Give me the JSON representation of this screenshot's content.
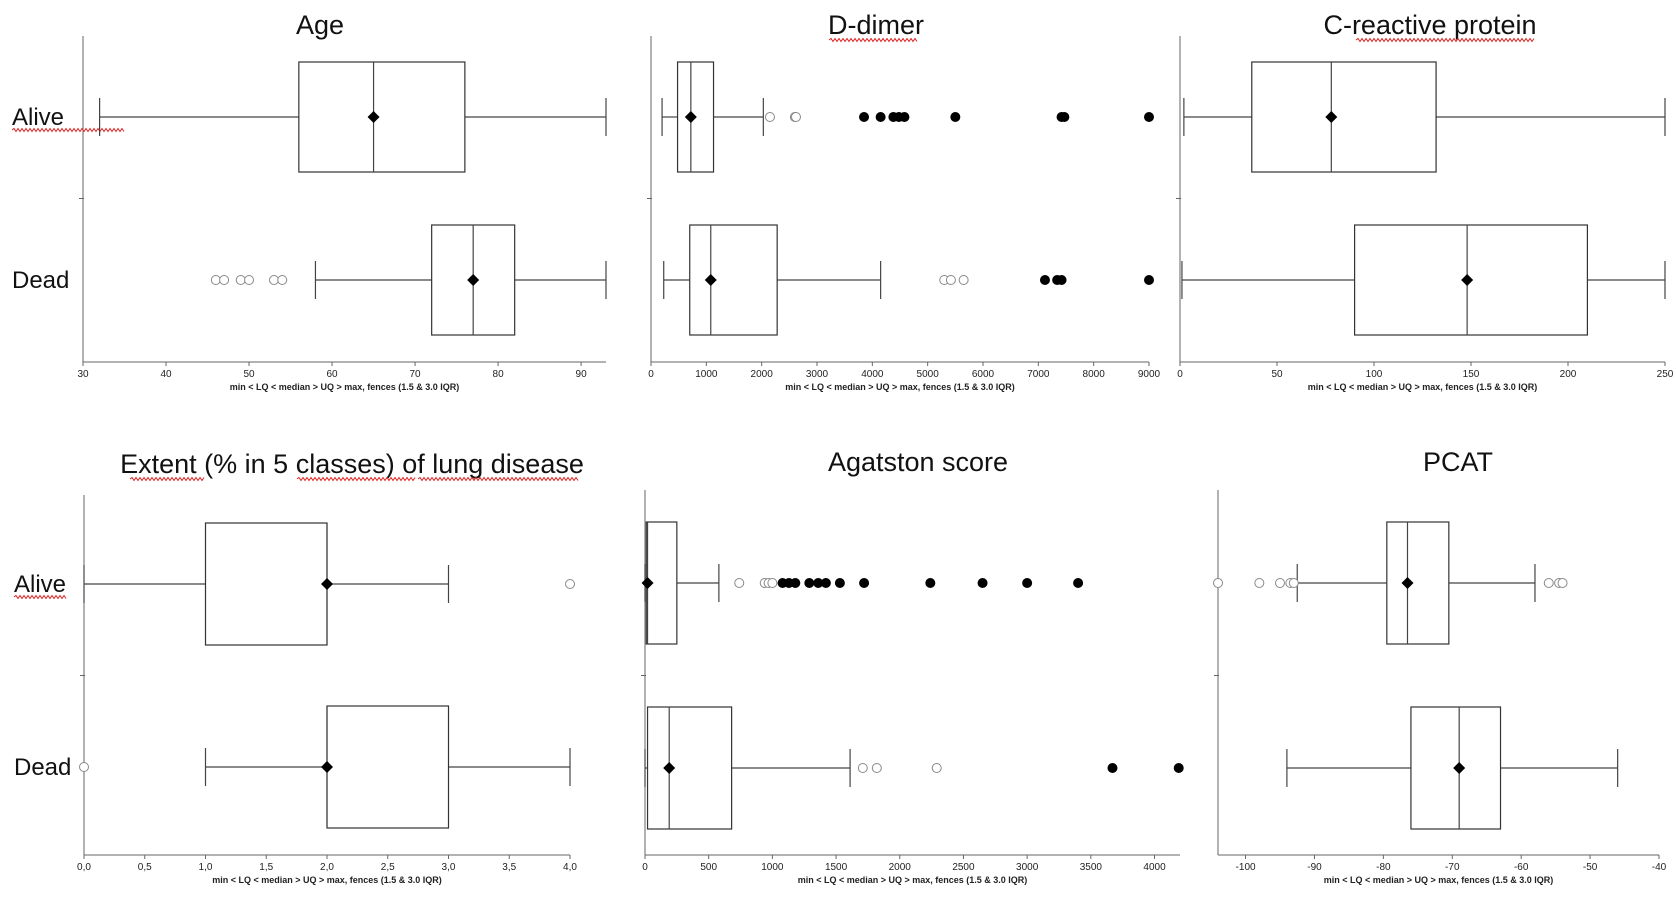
{
  "panels": [
    {
      "title": "Age",
      "xlabel": "min < LQ < median > UQ > max, fences (1.5 & 3.0 IQR)",
      "xmin": 30,
      "xmax": 93,
      "ticks": [
        30,
        40,
        50,
        60,
        70,
        80,
        90
      ],
      "tick_labels": [
        "30",
        "40",
        "50",
        "60",
        "70",
        "80",
        "90"
      ],
      "groups": [
        {
          "label": "Alive",
          "min": 32,
          "q1": 56,
          "median": 65,
          "q3": 76,
          "max": 93,
          "mean": 65,
          "outliers_mild": [],
          "outliers_extreme": []
        },
        {
          "label": "Dead",
          "min": 58,
          "q1": 72,
          "median": 77,
          "q3": 82,
          "max": 93,
          "mean": 77,
          "outliers_mild": [
            46,
            47,
            49,
            50,
            53,
            54
          ],
          "outliers_extreme": []
        }
      ]
    },
    {
      "title": "D-dimer",
      "xlabel": "min < LQ < median > UQ > max, fences (1.5 & 3.0 IQR)",
      "xmin": 0,
      "xmax": 9000,
      "ticks": [
        0,
        1000,
        2000,
        3000,
        4000,
        5000,
        6000,
        7000,
        8000,
        9000
      ],
      "tick_labels": [
        "0",
        "1000",
        "2000",
        "3000",
        "4000",
        "5000",
        "6000",
        "7000",
        "8000",
        "9000"
      ],
      "groups": [
        {
          "label": "Alive",
          "min": 200,
          "q1": 480,
          "median": 720,
          "q3": 1130,
          "max": 2030,
          "mean": 720,
          "outliers_mild": [
            2150,
            2600,
            2620
          ],
          "outliers_extreme": [
            3850,
            4150,
            4380,
            4480,
            4580,
            5500,
            7420,
            7470,
            9000
          ]
        },
        {
          "label": "Dead",
          "min": 230,
          "q1": 700,
          "median": 1080,
          "q3": 2280,
          "max": 4150,
          "mean": 1080,
          "outliers_mild": [
            5300,
            5420,
            5650
          ],
          "outliers_extreme": [
            7120,
            7340,
            7420,
            9000
          ]
        }
      ]
    },
    {
      "title": "C-reactive protein",
      "xlabel": "min < LQ < median > UQ > max, fences (1.5 & 3.0 IQR)",
      "xmin": 0,
      "xmax": 250,
      "ticks": [
        0,
        50,
        100,
        150,
        200,
        250
      ],
      "tick_labels": [
        "0",
        "50",
        "100",
        "150",
        "200",
        "250"
      ],
      "groups": [
        {
          "label": "Alive",
          "min": 2,
          "q1": 37,
          "median": 78,
          "q3": 132,
          "max": 250,
          "mean": 78,
          "outliers_mild": [],
          "outliers_extreme": []
        },
        {
          "label": "Dead",
          "min": 1,
          "q1": 90,
          "median": 148,
          "q3": 210,
          "max": 250,
          "mean": 148,
          "outliers_mild": [],
          "outliers_extreme": []
        }
      ]
    },
    {
      "title": "Extent (% in 5 classes) of lung disease",
      "xlabel": "min < LQ < median > UQ > max, fences (1.5 & 3.0 IQR)",
      "xmin": 0,
      "xmax": 4,
      "ticks": [
        0,
        0.5,
        1,
        1.5,
        2,
        2.5,
        3,
        3.5,
        4
      ],
      "tick_labels": [
        "0,0",
        "0,5",
        "1,0",
        "1,5",
        "2,0",
        "2,5",
        "3,0",
        "3,5",
        "4,0"
      ],
      "groups": [
        {
          "label": "Alive",
          "min": 0,
          "q1": 1,
          "median": 2,
          "q3": 2,
          "max": 3,
          "mean": 2,
          "outliers_mild": [
            4
          ],
          "outliers_extreme": []
        },
        {
          "label": "Dead",
          "min": 1,
          "q1": 2,
          "median": 2,
          "q3": 3,
          "max": 4,
          "mean": 2,
          "outliers_mild": [
            0
          ],
          "outliers_extreme": []
        }
      ]
    },
    {
      "title": "Agatston score",
      "xlabel": "min < LQ < median > UQ > max, fences (1.5 & 3.0 IQR)",
      "xmin": 0,
      "xmax": 4200,
      "ticks": [
        0,
        500,
        1000,
        1500,
        2000,
        2500,
        3000,
        3500,
        4000
      ],
      "tick_labels": [
        "0",
        "500",
        "1000",
        "1500",
        "2000",
        "2500",
        "3000",
        "3500",
        "4000"
      ],
      "groups": [
        {
          "label": "Alive",
          "min": 0,
          "q1": 10,
          "median": 20,
          "q3": 250,
          "max": 580,
          "mean": 20,
          "outliers_mild": [
            740,
            940,
            970,
            1000
          ],
          "outliers_extreme": [
            1080,
            1130,
            1180,
            1290,
            1360,
            1420,
            1530,
            1720,
            2240,
            2650,
            3000,
            3400
          ]
        },
        {
          "label": "Dead",
          "min": 0,
          "q1": 20,
          "median": 190,
          "q3": 680,
          "max": 1610,
          "mean": 190,
          "outliers_mild": [
            1710,
            1820,
            2290
          ],
          "outliers_extreme": [
            3670,
            4190
          ]
        }
      ]
    },
    {
      "title": "PCAT",
      "xlabel": "min < LQ < median > UQ > max, fences (1.5 & 3.0 IQR)",
      "xmin": -104,
      "xmax": -40,
      "ticks": [
        -100,
        -90,
        -80,
        -70,
        -60,
        -50,
        -40
      ],
      "tick_labels": [
        "-100",
        "-90",
        "-80",
        "-70",
        "-60",
        "-50",
        "-40"
      ],
      "groups": [
        {
          "label": "Alive",
          "min": -92.5,
          "q1": -79.5,
          "median": -76.5,
          "q3": -70.5,
          "max": -58,
          "mean": -76.5,
          "outliers_mild": [
            -104,
            -98,
            -95,
            -93.5,
            -93,
            -56,
            -54.5,
            -54
          ],
          "outliers_extreme": []
        },
        {
          "label": "Dead",
          "min": -94,
          "q1": -76,
          "median": -69,
          "q3": -63,
          "max": -46,
          "mean": -69,
          "outliers_mild": [],
          "outliers_extreme": []
        }
      ]
    }
  ],
  "chart_data": [
    {
      "type": "box",
      "title": "Age",
      "xlabel": "min < LQ < median > UQ > max, fences (1.5 & 3.0 IQR)",
      "xlim": [
        30,
        93
      ],
      "categories": [
        "Alive",
        "Dead"
      ],
      "series": [
        {
          "name": "Alive",
          "values": [
            32,
            56,
            65,
            76,
            93
          ]
        },
        {
          "name": "Dead",
          "values": [
            58,
            72,
            77,
            82,
            93
          ],
          "outliers": [
            46,
            47,
            49,
            50,
            53,
            54
          ]
        }
      ]
    },
    {
      "type": "box",
      "title": "D-dimer",
      "xlabel": "min < LQ < median > UQ > max, fences (1.5 & 3.0 IQR)",
      "xlim": [
        0,
        9000
      ],
      "categories": [
        "Alive",
        "Dead"
      ],
      "series": [
        {
          "name": "Alive",
          "values": [
            200,
            480,
            720,
            1130,
            2030
          ],
          "outliers": [
            2150,
            2600,
            2620,
            3850,
            4150,
            4380,
            4480,
            4580,
            5500,
            7420,
            7470,
            9000
          ]
        },
        {
          "name": "Dead",
          "values": [
            230,
            700,
            1080,
            2280,
            4150
          ],
          "outliers": [
            5300,
            5420,
            5650,
            7120,
            7340,
            7420,
            9000
          ]
        }
      ]
    },
    {
      "type": "box",
      "title": "C-reactive protein",
      "xlabel": "min < LQ < median > UQ > max, fences (1.5 & 3.0 IQR)",
      "xlim": [
        0,
        250
      ],
      "categories": [
        "Alive",
        "Dead"
      ],
      "series": [
        {
          "name": "Alive",
          "values": [
            2,
            37,
            78,
            132,
            250
          ]
        },
        {
          "name": "Dead",
          "values": [
            1,
            90,
            148,
            210,
            250
          ]
        }
      ]
    },
    {
      "type": "box",
      "title": "Extent (% in 5 classes) of lung disease",
      "xlabel": "min < LQ < median > UQ > max, fences (1.5 & 3.0 IQR)",
      "xlim": [
        0,
        4
      ],
      "categories": [
        "Alive",
        "Dead"
      ],
      "series": [
        {
          "name": "Alive",
          "values": [
            0,
            1,
            2,
            2,
            3
          ],
          "outliers": [
            4
          ]
        },
        {
          "name": "Dead",
          "values": [
            1,
            2,
            2,
            3,
            4
          ],
          "outliers": [
            0
          ]
        }
      ]
    },
    {
      "type": "box",
      "title": "Agatston score",
      "xlabel": "min < LQ < median > UQ > max, fences (1.5 & 3.0 IQR)",
      "xlim": [
        0,
        4200
      ],
      "categories": [
        "Alive",
        "Dead"
      ],
      "series": [
        {
          "name": "Alive",
          "values": [
            0,
            10,
            20,
            250,
            580
          ],
          "outliers": [
            740,
            940,
            970,
            1000,
            1080,
            1130,
            1180,
            1290,
            1360,
            1420,
            1530,
            1720,
            2240,
            2650,
            3000,
            3400
          ]
        },
        {
          "name": "Dead",
          "values": [
            0,
            20,
            190,
            680,
            1610
          ],
          "outliers": [
            1710,
            1820,
            2290,
            3670,
            4190
          ]
        }
      ]
    },
    {
      "type": "box",
      "title": "PCAT",
      "xlabel": "min < LQ < median > UQ > max, fences (1.5 & 3.0 IQR)",
      "xlim": [
        -104,
        -40
      ],
      "categories": [
        "Alive",
        "Dead"
      ],
      "series": [
        {
          "name": "Alive",
          "values": [
            -92.5,
            -79.5,
            -76.5,
            -70.5,
            -58
          ],
          "outliers": [
            -104,
            -98,
            -95,
            -93.5,
            -93,
            -56,
            -54.5,
            -54
          ]
        },
        {
          "name": "Dead",
          "values": [
            -94,
            -76,
            -69,
            -63,
            -46
          ]
        }
      ]
    }
  ]
}
